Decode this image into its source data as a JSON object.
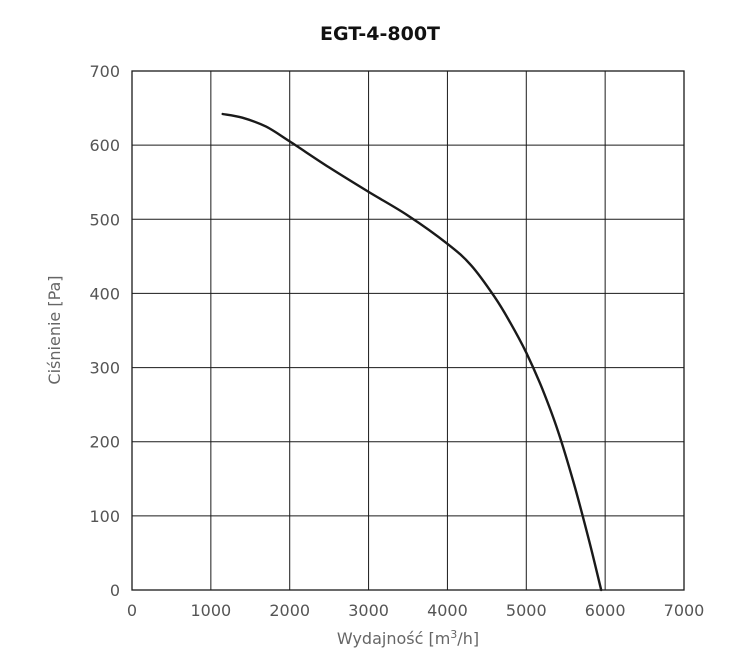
{
  "chart_data": {
    "type": "line",
    "title": "EGT-4-800T",
    "xlabel_prefix": "Wydajność [m",
    "xlabel_sup": "3",
    "xlabel_suffix": "/h]",
    "ylabel": "Ciśnienie [Pa]",
    "xlim": [
      0,
      7000
    ],
    "ylim": [
      0,
      700
    ],
    "xticks": [
      0,
      1000,
      2000,
      3000,
      4000,
      5000,
      6000,
      7000
    ],
    "yticks": [
      0,
      100,
      200,
      300,
      400,
      500,
      600,
      700
    ],
    "grid": true,
    "series": [
      {
        "x": [
          1150,
          1400,
          1700,
          2000,
          2500,
          3000,
          3500,
          4000,
          4300,
          4600,
          4800,
          5000,
          5200,
          5400,
          5600,
          5800,
          5950
        ],
        "y": [
          642,
          637,
          625,
          605,
          570,
          537,
          505,
          467,
          438,
          395,
          360,
          320,
          272,
          215,
          145,
          65,
          0
        ],
        "color": "#1a1a1a"
      }
    ]
  }
}
